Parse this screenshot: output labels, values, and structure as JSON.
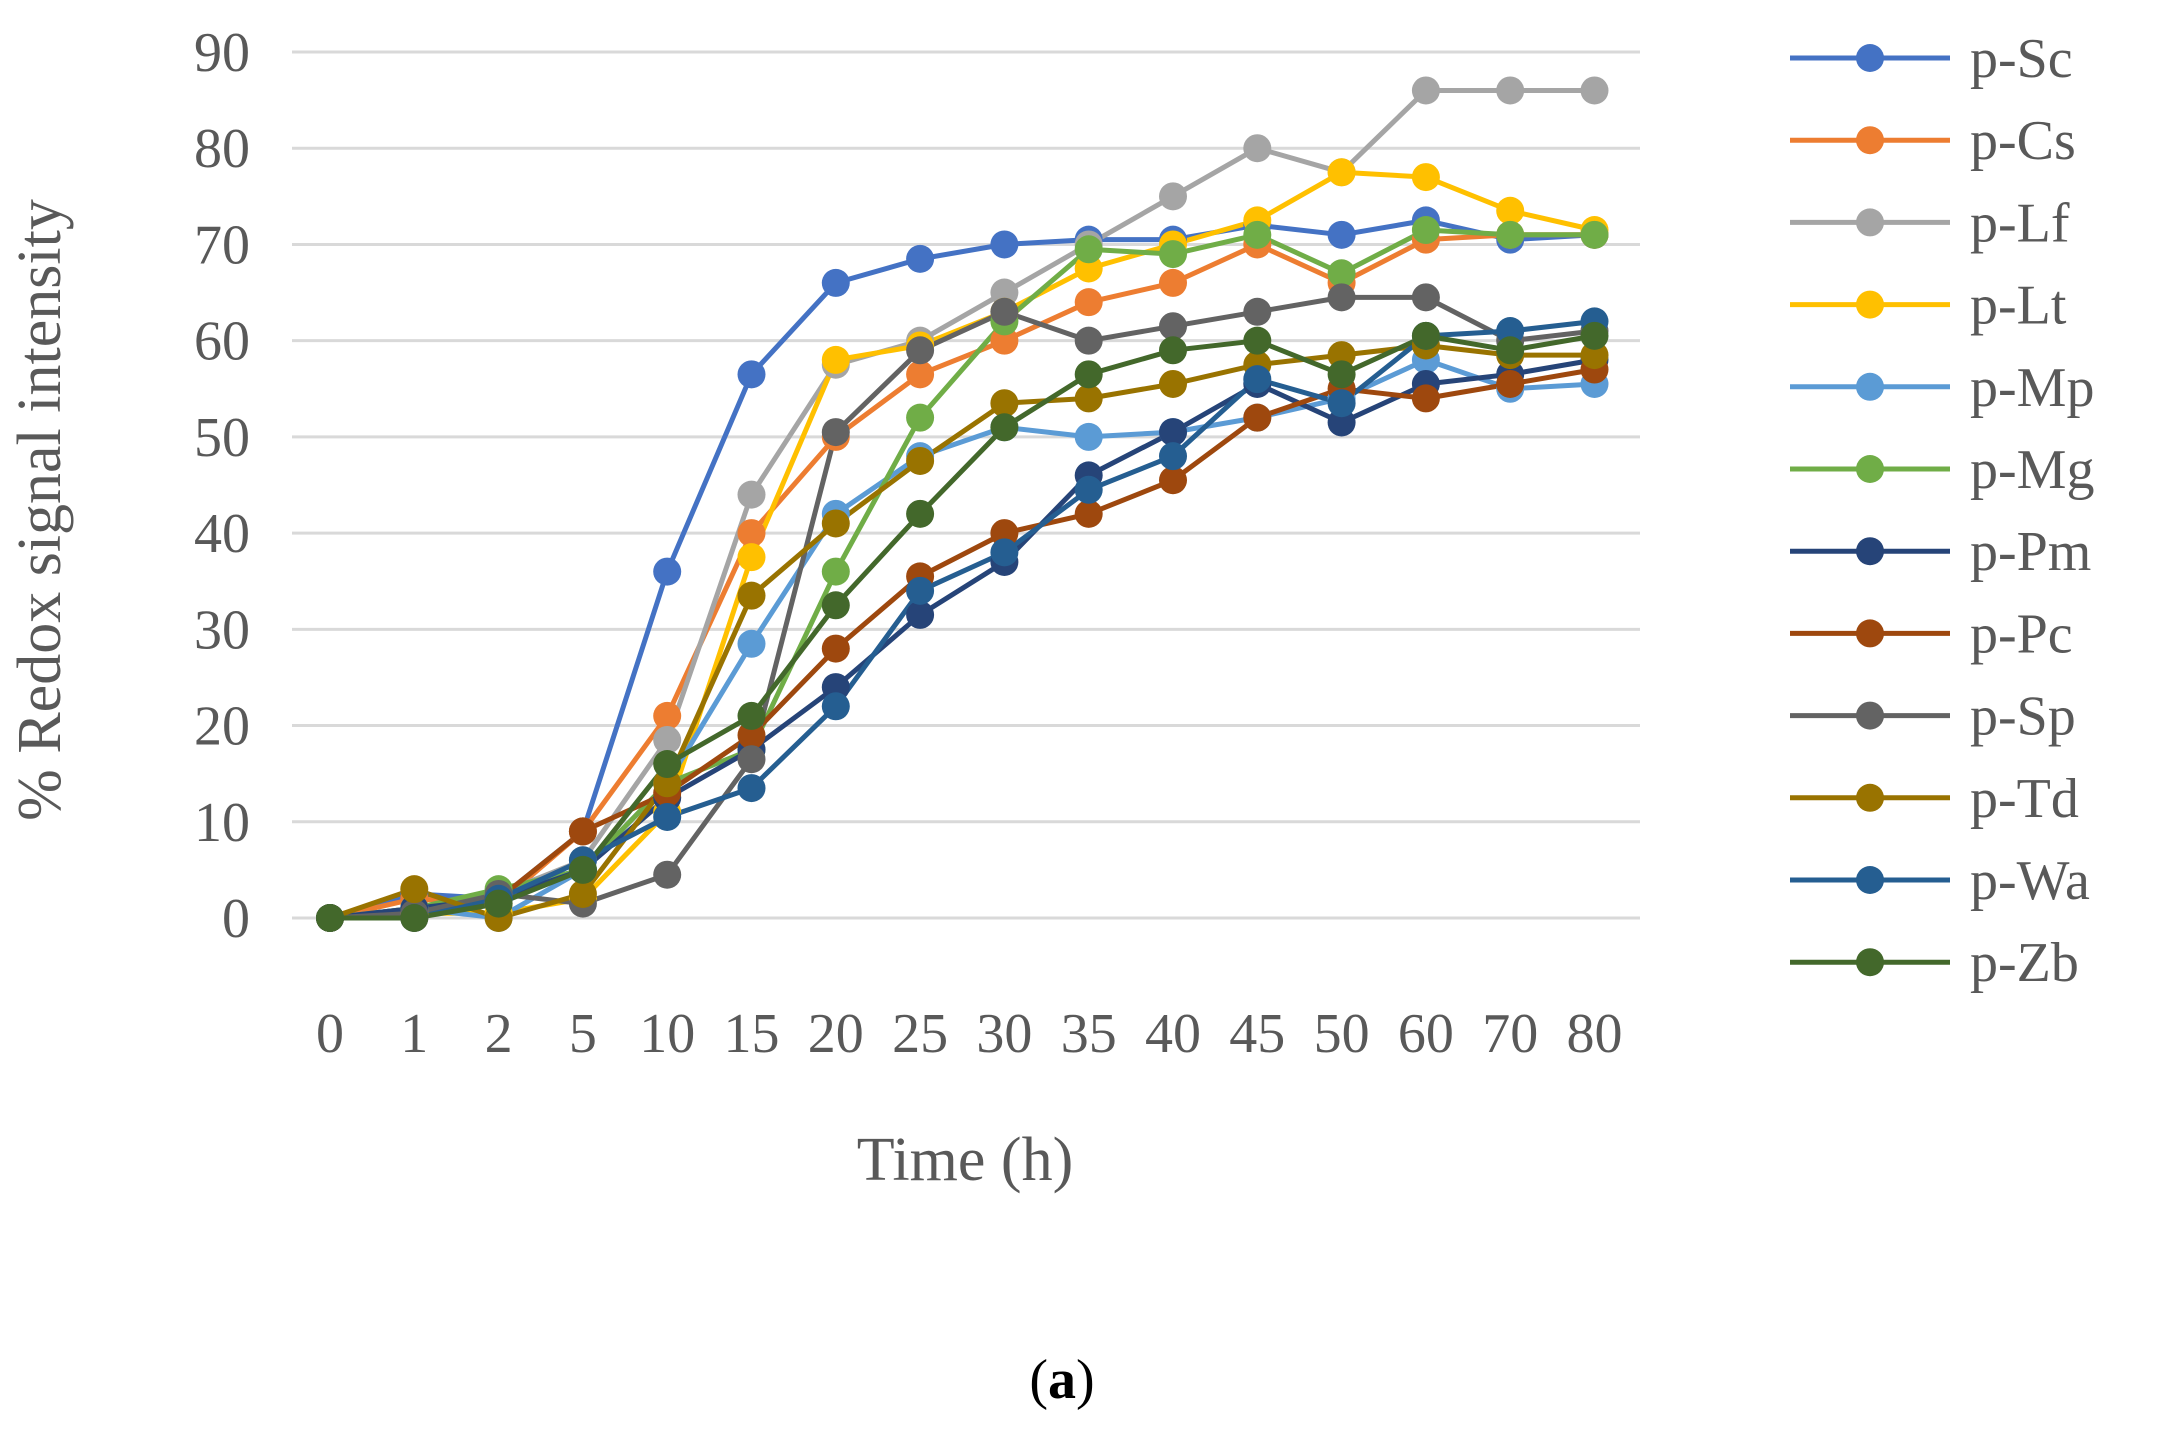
{
  "chart_data": {
    "type": "line",
    "title": "",
    "xlabel": "Time (h)",
    "ylabel": "% Redox signal intensity",
    "caption": {
      "open": "(",
      "letter": "a",
      "close": ")"
    },
    "ylim": [
      0,
      90
    ],
    "yticks": [
      0,
      10,
      20,
      30,
      40,
      50,
      60,
      70,
      80,
      90
    ],
    "grid": true,
    "legend": "right",
    "categories": [
      "0",
      "1",
      "2",
      "5",
      "10",
      "15",
      "20",
      "25",
      "30",
      "35",
      "40",
      "45",
      "50",
      "60",
      "70",
      "80"
    ],
    "series": [
      {
        "name": "p-Sc",
        "color": "#4472C4",
        "values": [
          0,
          2.5,
          2,
          9,
          36,
          56.5,
          66,
          68.5,
          70,
          70.5,
          70.5,
          72,
          71,
          72.5,
          70.5,
          71
        ]
      },
      {
        "name": "p-Cs",
        "color": "#ED7D31",
        "values": [
          0,
          2,
          1.5,
          9,
          21,
          40,
          50,
          56.5,
          60,
          64,
          66,
          70,
          66,
          70.5,
          71,
          71
        ]
      },
      {
        "name": "p-Lf",
        "color": "#A5A5A5",
        "values": [
          0,
          1,
          2.5,
          6,
          18.5,
          44,
          57.5,
          60,
          65,
          70,
          75,
          80,
          77.5,
          86,
          86,
          86
        ]
      },
      {
        "name": "p-Lt",
        "color": "#FFC000",
        "values": [
          0,
          0.5,
          0.5,
          2,
          11,
          37.5,
          58,
          59.5,
          63,
          67.5,
          70,
          72.5,
          77.5,
          77,
          73.5,
          71.5
        ]
      },
      {
        "name": "p-Mp",
        "color": "#5B9BD5",
        "values": [
          0,
          1,
          0,
          5,
          14,
          28.5,
          42,
          48,
          51,
          50,
          50.5,
          52,
          54,
          58,
          55,
          55.5
        ]
      },
      {
        "name": "p-Mg",
        "color": "#70AD47",
        "values": [
          0,
          1,
          3,
          5,
          14,
          17.5,
          36,
          52,
          62,
          69.5,
          69,
          71,
          67,
          71.5,
          71,
          71
        ]
      },
      {
        "name": "p-Pm",
        "color": "#264478",
        "values": [
          0,
          1,
          2,
          5,
          12.5,
          17.5,
          24,
          31.5,
          37,
          46,
          50.5,
          55.5,
          51.5,
          55.5,
          56.5,
          58
        ]
      },
      {
        "name": "p-Pc",
        "color": "#9E480E",
        "values": [
          0,
          0,
          2,
          9,
          13,
          19,
          28,
          35.5,
          40,
          42,
          45.5,
          52,
          55,
          54,
          55.5,
          57
        ]
      },
      {
        "name": "p-Sp",
        "color": "#636363",
        "values": [
          0,
          0.5,
          2.5,
          1.5,
          4.5,
          16.5,
          50.5,
          59,
          63,
          60,
          61.5,
          63,
          64.5,
          64.5,
          60,
          61
        ]
      },
      {
        "name": "p-Td",
        "color": "#997300",
        "values": [
          0,
          3,
          0,
          2.5,
          14,
          33.5,
          41,
          47.5,
          53.5,
          54,
          55.5,
          57.5,
          58.5,
          59.5,
          58.5,
          58.5
        ]
      },
      {
        "name": "p-Wa",
        "color": "#255E91",
        "values": [
          0,
          0,
          2,
          6,
          10.5,
          13.5,
          22,
          34,
          38,
          44.5,
          48,
          56,
          53.5,
          60.5,
          61,
          62
        ]
      },
      {
        "name": "p-Zb",
        "color": "#43682B",
        "values": [
          0,
          0,
          1.5,
          5,
          16,
          21,
          32.5,
          42,
          51,
          56.5,
          59,
          60,
          56.5,
          60.5,
          59,
          60.5
        ]
      }
    ]
  }
}
